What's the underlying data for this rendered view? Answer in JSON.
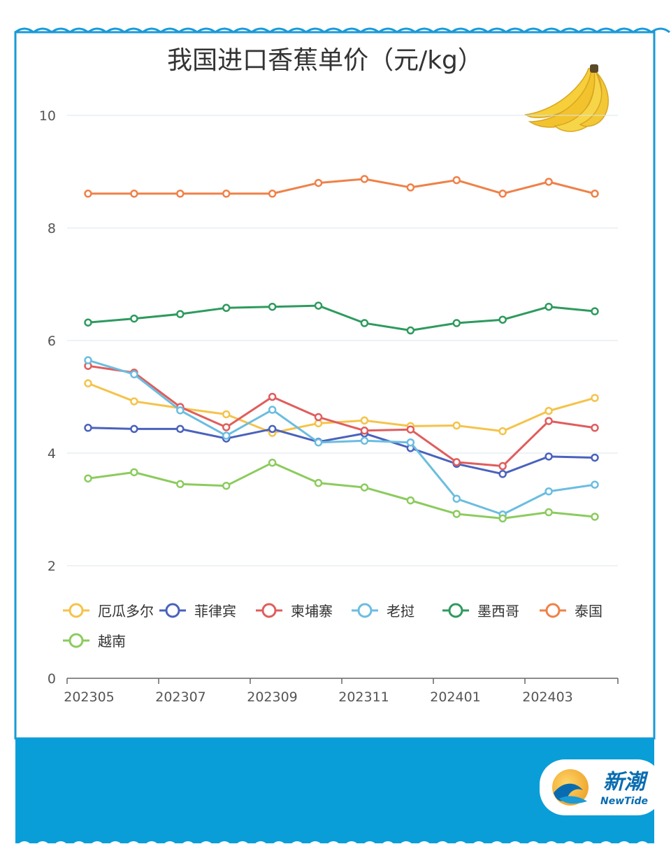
{
  "chart_data": {
    "type": "line",
    "title": "我国进口香蕉单价（元/kg）",
    "xlabel": "",
    "ylabel": "",
    "x": [
      "202305",
      "202306",
      "202307",
      "202308",
      "202309",
      "202310",
      "202311",
      "202312",
      "202401",
      "202402",
      "202403",
      "202404"
    ],
    "xtick_labels": [
      "202305",
      "202307",
      "202309",
      "202311",
      "202401",
      "202403"
    ],
    "yticks": [
      0,
      2,
      4,
      6,
      8,
      10
    ],
    "ylim": [
      0,
      10
    ],
    "grid": true,
    "legend_position": "bottom",
    "series": [
      {
        "name": "厄瓜多尔",
        "color": "#f5c34a",
        "values": [
          5.24,
          4.92,
          4.8,
          4.69,
          4.36,
          4.53,
          4.58,
          4.48,
          4.49,
          4.39,
          4.75,
          4.98
        ]
      },
      {
        "name": "菲律宾",
        "color": "#4a62bd",
        "values": [
          4.45,
          4.43,
          4.43,
          4.26,
          4.43,
          4.2,
          4.35,
          4.09,
          3.81,
          3.63,
          3.94,
          3.92
        ]
      },
      {
        "name": "柬埔寨",
        "color": "#e05d5d",
        "values": [
          5.55,
          5.43,
          4.82,
          4.46,
          5.0,
          4.64,
          4.4,
          4.42,
          3.84,
          3.77,
          4.57,
          4.45
        ]
      },
      {
        "name": "老挝",
        "color": "#6bbde0",
        "values": [
          5.65,
          5.4,
          4.76,
          4.31,
          4.77,
          4.19,
          4.22,
          4.19,
          3.19,
          2.91,
          3.32,
          3.44
        ]
      },
      {
        "name": "墨西哥",
        "color": "#2e9a5e",
        "values": [
          6.32,
          6.39,
          6.47,
          6.58,
          6.6,
          6.62,
          6.31,
          6.18,
          6.31,
          6.37,
          6.6,
          6.52
        ]
      },
      {
        "name": "泰国",
        "color": "#ef8148",
        "values": [
          8.61,
          8.61,
          8.61,
          8.61,
          8.61,
          8.8,
          8.87,
          8.72,
          8.85,
          8.61,
          8.82,
          8.61
        ]
      },
      {
        "name": "越南",
        "color": "#8ccb5e",
        "values": [
          3.55,
          3.66,
          3.45,
          3.42,
          3.83,
          3.47,
          3.39,
          3.16,
          2.92,
          2.84,
          2.95,
          2.87
        ]
      }
    ]
  },
  "brand": {
    "name_cn": "新潮",
    "name_en": "NewTide"
  },
  "colors": {
    "frame": "#1a9ad6",
    "footer": "#0a9ed8",
    "grid": "#dbe6ee",
    "axis_text": "#555555",
    "title": "#333333"
  }
}
